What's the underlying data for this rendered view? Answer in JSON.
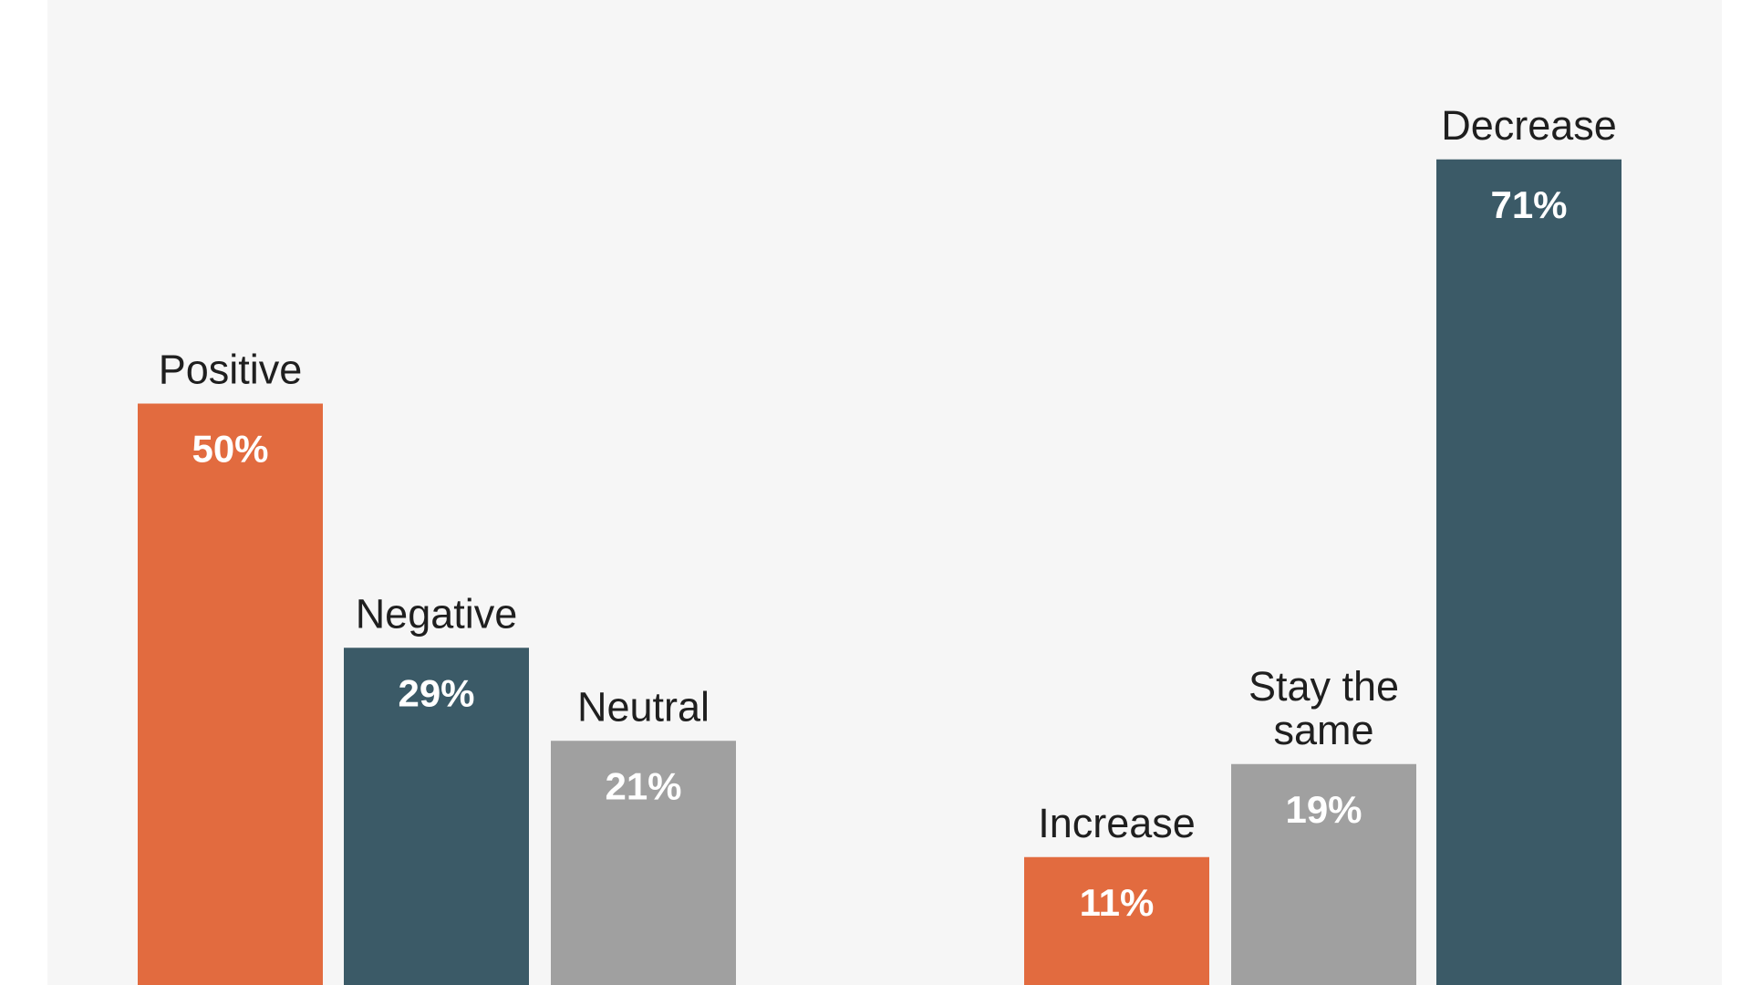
{
  "colors": {
    "panel_background": "#f6f6f6",
    "orange": "#e26b3f",
    "teal": "#3b5a67",
    "gray": "#a0a0a0"
  },
  "chart_data": [
    {
      "type": "bar",
      "categories": [
        "Positive",
        "Negative",
        "Neutral"
      ],
      "values": [
        50,
        29,
        21
      ],
      "value_labels": [
        "50%",
        "29%",
        "21%"
      ],
      "bar_colors": [
        "#e26b3f",
        "#3b5a67",
        "#a0a0a0"
      ],
      "title": "",
      "xlabel": "",
      "ylabel": "",
      "ylim": [
        0,
        71
      ],
      "grid": false,
      "legend": "none"
    },
    {
      "type": "bar",
      "categories": [
        "Increase",
        "Stay the same",
        "Decrease"
      ],
      "category_lines": [
        [
          "Increase"
        ],
        [
          "Stay the",
          "same"
        ],
        [
          "Decrease"
        ]
      ],
      "values": [
        11,
        19,
        71
      ],
      "value_labels": [
        "11%",
        "19%",
        "71%"
      ],
      "bar_colors": [
        "#e26b3f",
        "#a0a0a0",
        "#3b5a67"
      ],
      "title": "",
      "xlabel": "",
      "ylabel": "",
      "ylim": [
        0,
        71
      ],
      "grid": false,
      "legend": "none"
    }
  ]
}
